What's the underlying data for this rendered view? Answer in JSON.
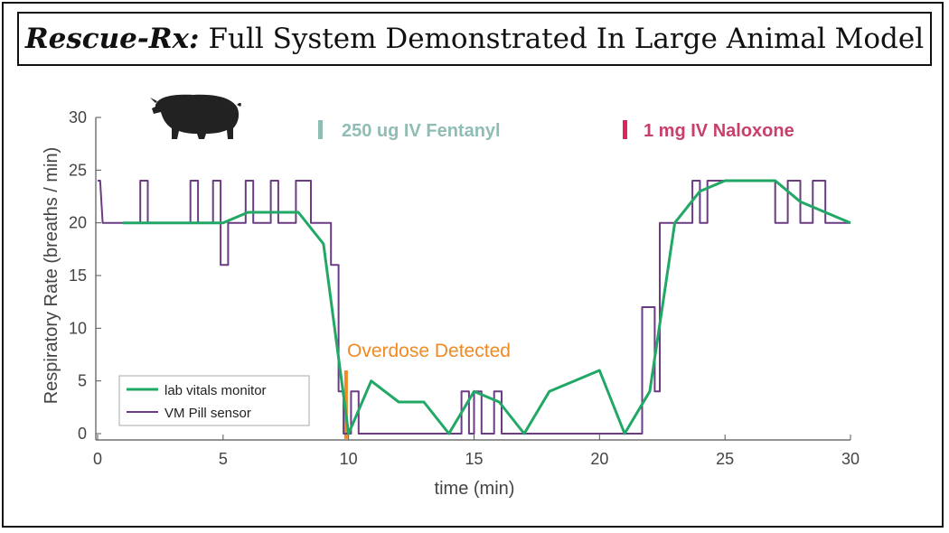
{
  "header": {
    "brand": "Rescue-Rx:",
    "subtitle": "Full System Demonstrated In Large Animal Model"
  },
  "chart_data": {
    "type": "line",
    "xlabel": "time (min)",
    "ylabel": "Respiratory Rate (breaths / min)",
    "xlim": [
      0,
      30
    ],
    "ylim": [
      0,
      30
    ],
    "xticks": [
      0,
      5,
      10,
      15,
      20,
      25,
      30
    ],
    "yticks": [
      0,
      5,
      10,
      15,
      20,
      25,
      30
    ],
    "grid": false,
    "legend_position": "bottom-left",
    "annotations": {
      "fentanyl": {
        "text": "250 ug IV Fentanyl",
        "color": "#8fbdb5"
      },
      "naloxone": {
        "text": "1 mg IV Naloxone",
        "color": "#c8406a"
      },
      "overdose": {
        "text": "Overdose Detected",
        "color": "#f08a24",
        "x": 9.9
      }
    },
    "icons": [
      "pig-icon"
    ],
    "series": [
      {
        "name": "lab vitals monitor",
        "color": "#22a866",
        "x": [
          1,
          5,
          6,
          8,
          9,
          10,
          10.9,
          12,
          13,
          14,
          15,
          16,
          17,
          18,
          20,
          21,
          22,
          22.5,
          23,
          24,
          25,
          26,
          27,
          28,
          29,
          30
        ],
        "y": [
          20,
          20,
          21,
          21,
          18,
          0,
          5,
          3,
          3,
          0,
          4,
          3,
          0,
          4,
          6,
          0,
          4,
          12,
          20,
          23,
          24,
          24,
          24,
          22,
          21,
          20
        ]
      },
      {
        "name": "VM Pill sensor",
        "color": "#6a3d82",
        "step": true,
        "x": [
          0,
          0.1,
          0.2,
          1.7,
          1.7,
          2.0,
          2.0,
          3.7,
          3.7,
          4.0,
          4.0,
          4.6,
          4.6,
          4.9,
          4.9,
          4.9,
          4.9,
          5.2,
          5.2,
          5.9,
          5.9,
          6.2,
          6.2,
          6.9,
          6.9,
          7.2,
          7.2,
          7.9,
          7.9,
          8.5,
          8.5,
          9.3,
          9.3,
          9.6,
          9.6,
          9.8,
          9.8,
          9.9,
          9.9,
          10.1,
          10.1,
          10.4,
          10.4,
          14.5,
          14.5,
          14.8,
          14.8,
          15.0,
          15.0,
          15.3,
          15.3,
          15.8,
          15.8,
          16.1,
          16.1,
          21.7,
          21.7,
          22.2,
          22.2,
          22.4,
          22.4,
          23.7,
          23.7,
          24.0,
          24.0,
          24.3,
          24.3,
          27.0,
          27.0,
          27.5,
          27.5,
          28.0,
          28.0,
          28.5,
          28.5,
          29.0,
          29.0,
          29.3,
          29.3,
          30
        ],
        "y": [
          24,
          24,
          20,
          20,
          24,
          24,
          20,
          20,
          24,
          24,
          20,
          20,
          24,
          24,
          20,
          20,
          16,
          16,
          20,
          20,
          24,
          24,
          20,
          20,
          24,
          24,
          20,
          20,
          24,
          24,
          20,
          20,
          16,
          16,
          4,
          4,
          0,
          0,
          0,
          0,
          4,
          4,
          0,
          0,
          4,
          4,
          0,
          0,
          4,
          4,
          0,
          0,
          4,
          4,
          0,
          0,
          12,
          12,
          4,
          4,
          20,
          20,
          24,
          24,
          20,
          20,
          24,
          24,
          20,
          20,
          24,
          24,
          20,
          20,
          24,
          24,
          20,
          20,
          20,
          20
        ]
      }
    ]
  }
}
